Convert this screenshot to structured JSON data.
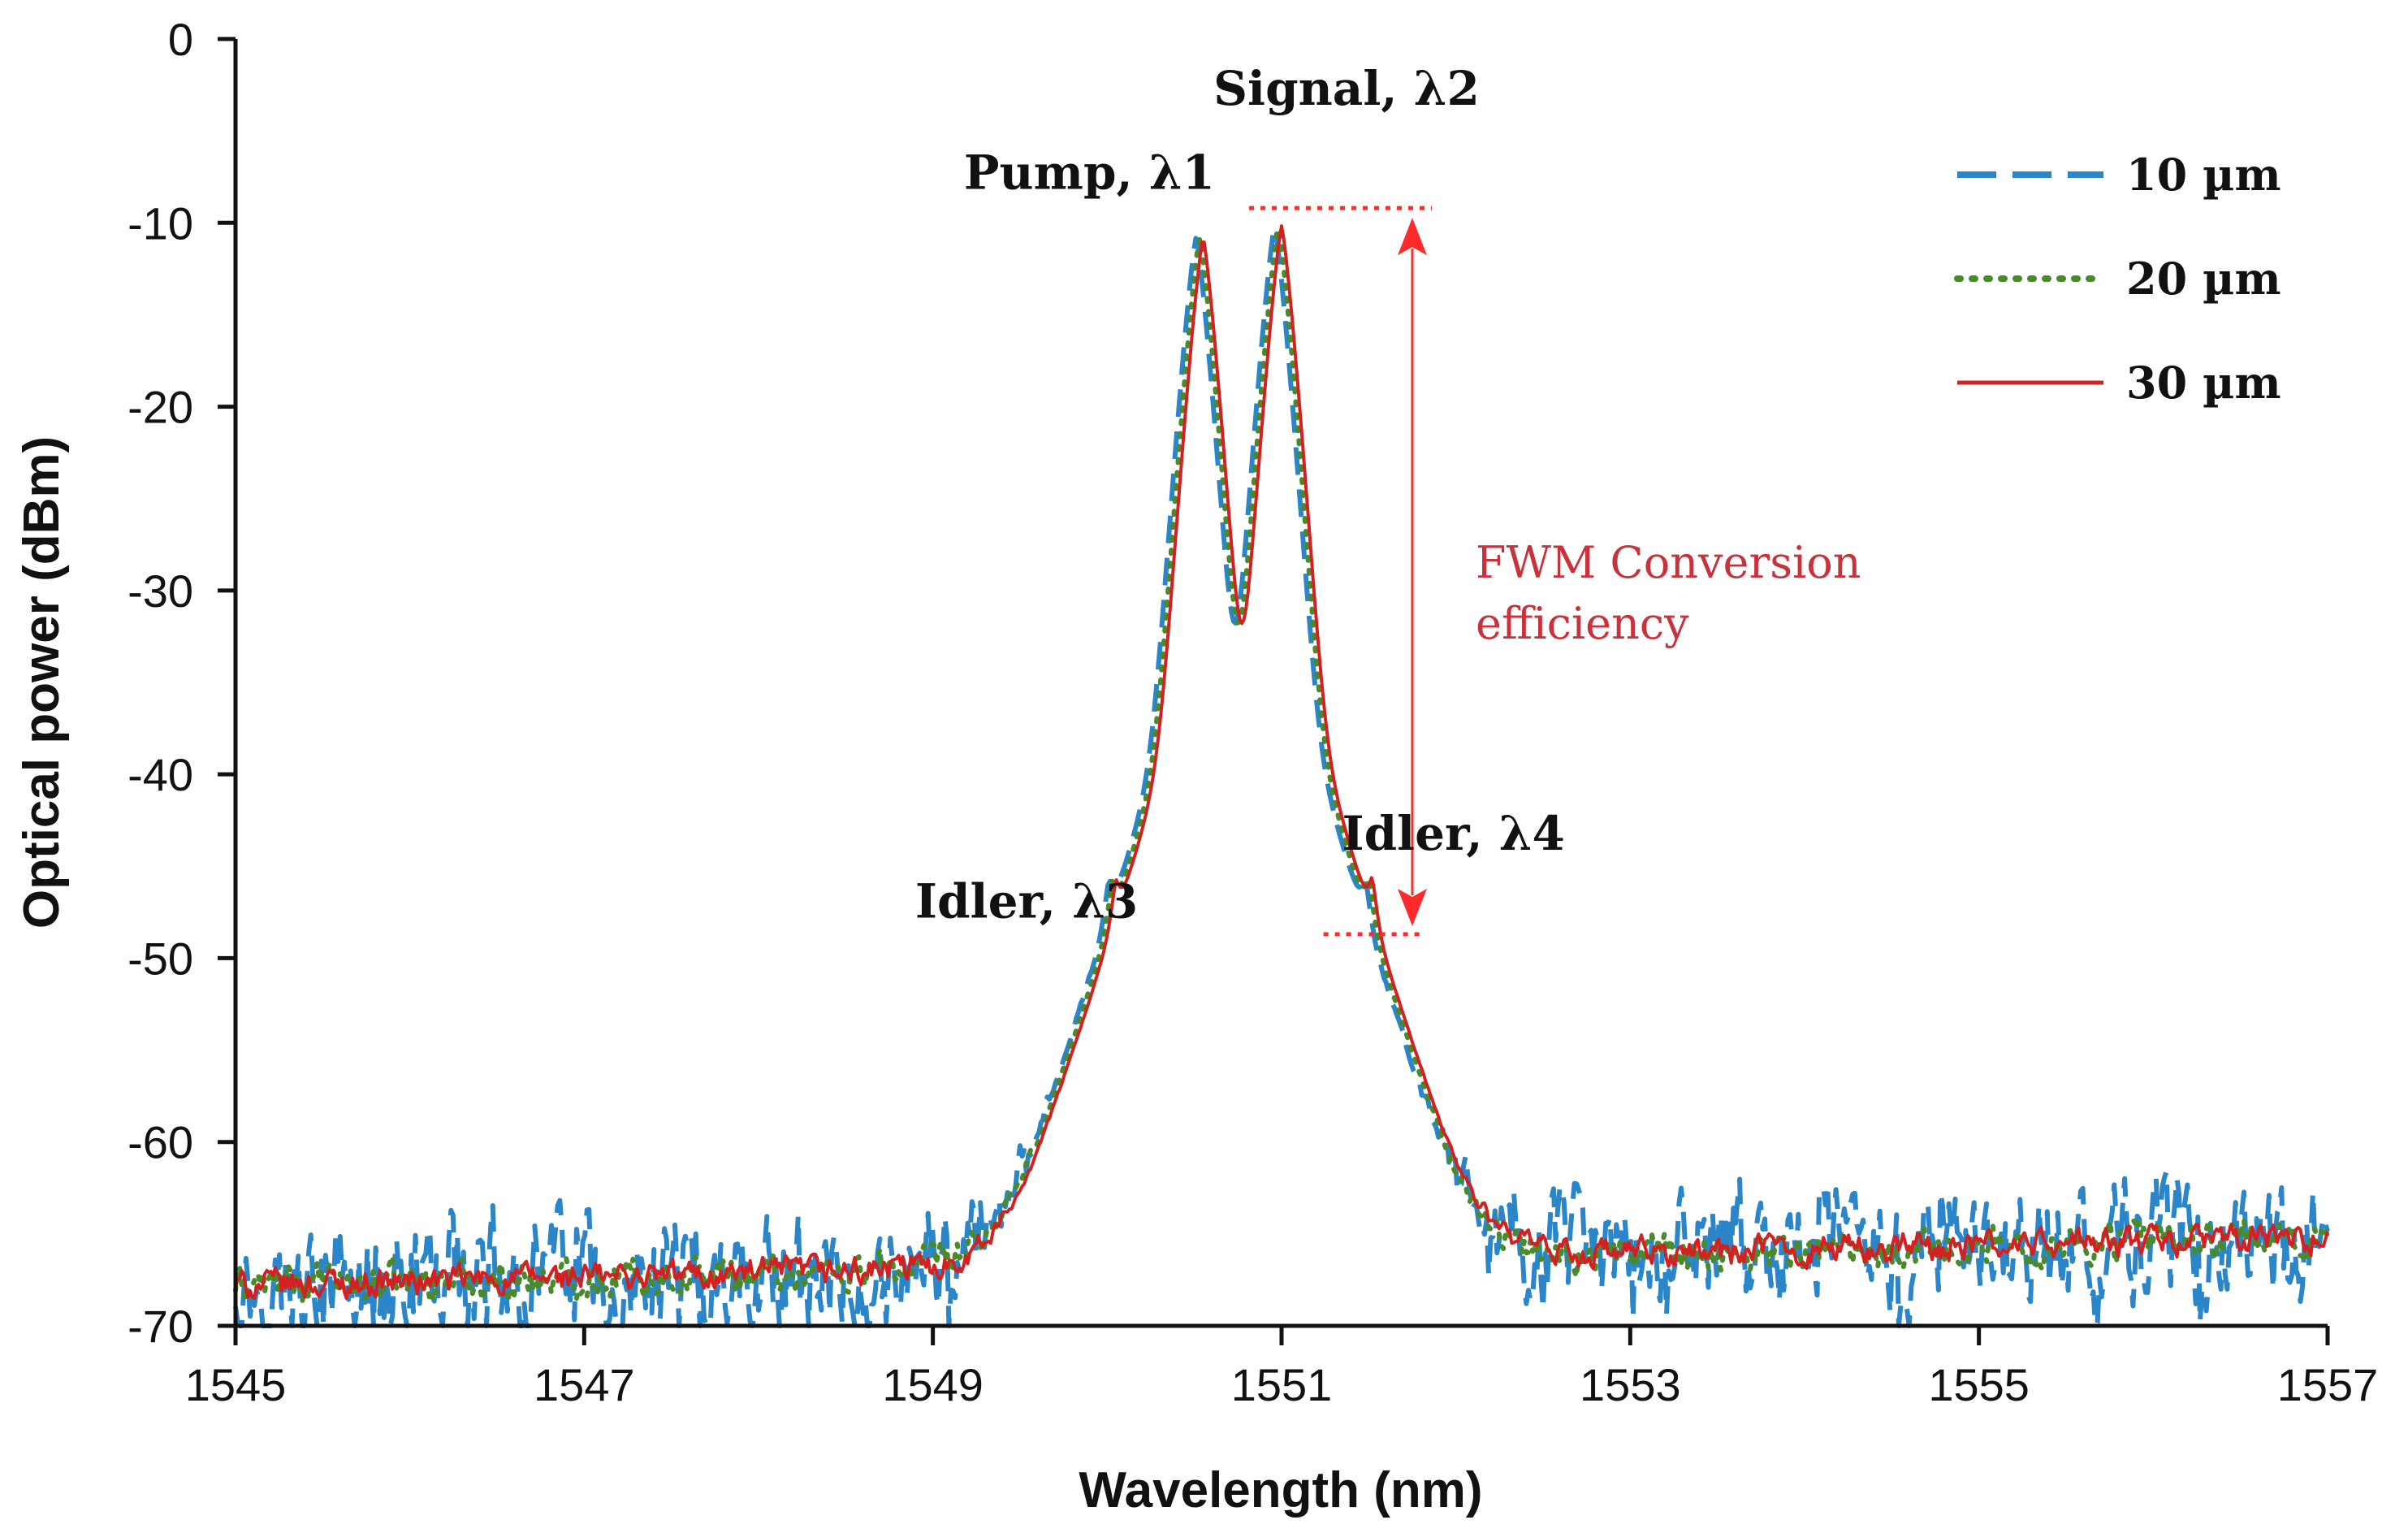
{
  "chart_data": {
    "type": "line",
    "title": "",
    "xlabel": "Wavelength (nm)",
    "ylabel": "Optical power (dBm)",
    "xlim": [
      1545,
      1557
    ],
    "ylim": [
      -70,
      0
    ],
    "xticks": [
      1545,
      1547,
      1549,
      1551,
      1553,
      1555,
      1557
    ],
    "xtick_labels": [
      "1545",
      "1547",
      "1549",
      "1551",
      "1553",
      "1555",
      "1557"
    ],
    "yticks": [
      0,
      -10,
      -20,
      -30,
      -40,
      -50,
      -60,
      -70
    ],
    "ytick_labels": [
      "0",
      "-10",
      "-20",
      "-30",
      "-40",
      "-50",
      "-60",
      "-70"
    ],
    "grid": false,
    "legend_position": "top-right",
    "noise_floor": {
      "start_dbm": -67.8,
      "end_dbm": -65.2
    },
    "peaks": [
      {
        "label": "Idler, λ3",
        "wavelength": 1550.05,
        "power": -50.0
      },
      {
        "label": "Pump, λ1",
        "wavelength": 1550.55,
        "power": -10.8
      },
      {
        "label": "Signal, λ2",
        "wavelength": 1551.0,
        "power": -10.2
      },
      {
        "label": "Idler, λ4",
        "wavelength": 1551.52,
        "power": -49.5
      }
    ],
    "series": [
      {
        "name": "10 µm",
        "color": "#2a86c8",
        "dash": "dashed",
        "noise_amplitude_db": 3.2,
        "offset_nm": -0.04
      },
      {
        "name": "20 µm",
        "color": "#4a8a2a",
        "dash": "dotted",
        "noise_amplitude_db": 1.0,
        "offset_nm": -0.02
      },
      {
        "name": "30 µm",
        "color": "#d42020",
        "dash": "solid",
        "noise_amplitude_db": 0.8,
        "offset_nm": 0.0
      }
    ],
    "annotation": {
      "text_line1": "FWM Conversion",
      "text_line2": "efficiency",
      "color": "#c8323c",
      "top_level_dbm": -9.2,
      "bottom_level_dbm": -48.7,
      "arrow_wavelength": 1551.75
    }
  }
}
